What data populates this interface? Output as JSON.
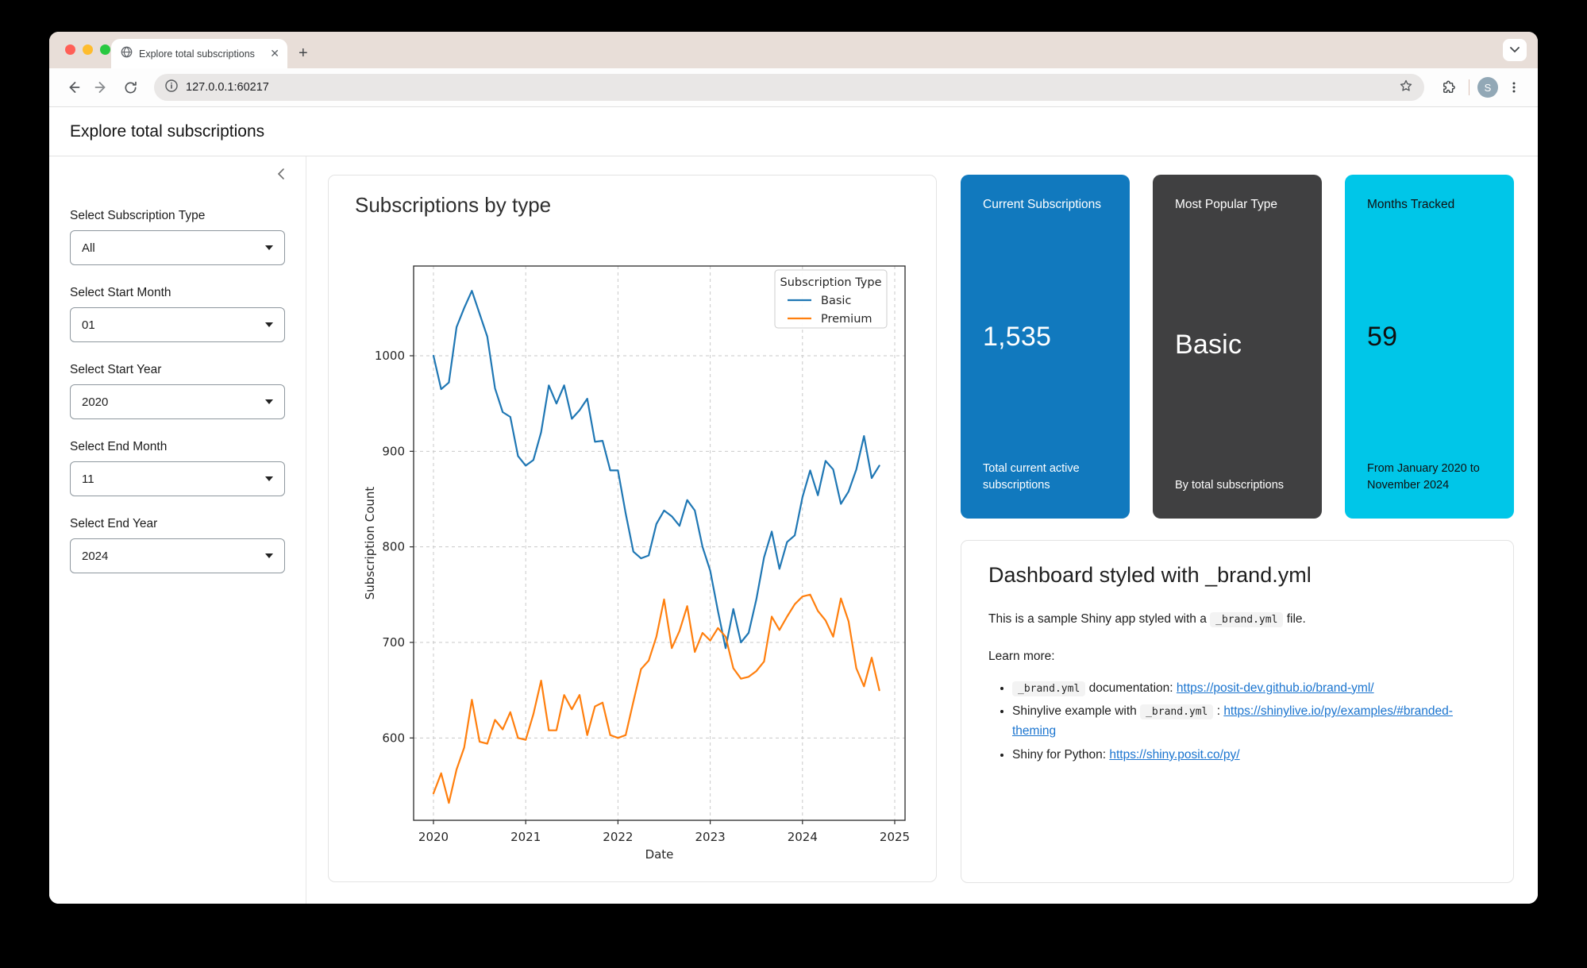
{
  "browser": {
    "tab_title": "Explore total subscriptions",
    "close_tab_glyph": "✕",
    "new_tab_glyph": "+",
    "url": "127.0.0.1:60217",
    "avatar_initial": "S"
  },
  "header": {
    "title": "Explore total subscriptions"
  },
  "sidebar": {
    "selects": [
      {
        "label": "Select Subscription Type",
        "value": "All"
      },
      {
        "label": "Select Start Month",
        "value": "01"
      },
      {
        "label": "Select Start Year",
        "value": "2020"
      },
      {
        "label": "Select End Month",
        "value": "11"
      },
      {
        "label": "Select End Year",
        "value": "2024"
      }
    ]
  },
  "chart_card": {
    "title": "Subscriptions by type"
  },
  "chart_data": {
    "type": "line",
    "title": "Subscriptions by type",
    "xlabel": "Date",
    "ylabel": "Subscription Count",
    "x_start_year": 2020,
    "points_per_year": 12,
    "x_tick_years": [
      2020,
      2021,
      2022,
      2023,
      2024,
      2025
    ],
    "y_ticks": [
      600,
      700,
      800,
      900,
      1000
    ],
    "xlim": [
      2019.78,
      2025.11
    ],
    "ylim": [
      513,
      1095
    ],
    "grid": "dashed",
    "legend": {
      "title": "Subscription Type",
      "position": "upper right"
    },
    "series": [
      {
        "name": "Basic",
        "color": "#1f77b4",
        "values": [
          1000,
          965,
          972,
          1030,
          1050,
          1068,
          1044,
          1020,
          966,
          941,
          936,
          895,
          885,
          891,
          920,
          969,
          950,
          969,
          934,
          943,
          955,
          910,
          911,
          880,
          880,
          835,
          795,
          788,
          791,
          824,
          838,
          832,
          822,
          849,
          838,
          800,
          775,
          733,
          694,
          735,
          700,
          710,
          745,
          789,
          816,
          777,
          805,
          812,
          852,
          880,
          854,
          890,
          881,
          845,
          858,
          881,
          916,
          872,
          885
        ]
      },
      {
        "name": "Premium",
        "color": "#ff7f0e",
        "values": [
          542,
          563,
          532,
          567,
          590,
          640,
          596,
          594,
          619,
          609,
          627,
          600,
          598,
          625,
          660,
          608,
          608,
          645,
          630,
          645,
          603,
          633,
          637,
          603,
          600,
          603,
          638,
          672,
          681,
          706,
          745,
          694,
          712,
          738,
          690,
          710,
          702,
          715,
          706,
          673,
          662,
          664,
          670,
          680,
          727,
          713,
          727,
          740,
          748,
          750,
          733,
          723,
          706,
          746,
          722,
          673,
          654,
          684,
          650
        ]
      }
    ]
  },
  "value_boxes": [
    {
      "title": "Current Subscriptions",
      "value": "1,535",
      "caption": "Total current active subscriptions",
      "bg": "#1179be",
      "fg": "#ffffff"
    },
    {
      "title": "Most Popular Type",
      "value": "Basic",
      "caption": "By total subscriptions",
      "bg": "#404041",
      "fg": "#ffffff"
    },
    {
      "title": "Months Tracked",
      "value": "59",
      "caption": "From January 2020 to November 2024",
      "bg": "#00c6e8",
      "fg": "#101010"
    }
  ],
  "info_card": {
    "title": "Dashboard styled with _brand.yml",
    "intro": [
      {
        "type": "text",
        "value": "This is a sample Shiny app styled with a "
      },
      {
        "type": "code",
        "value": "_brand.yml"
      },
      {
        "type": "text",
        "value": " file."
      }
    ],
    "learn_more_label": "Learn more:",
    "bullets": [
      [
        {
          "type": "code",
          "value": "_brand.yml"
        },
        {
          "type": "text",
          "value": " documentation: "
        },
        {
          "type": "link",
          "value": "https://posit-dev.github.io/brand-yml/"
        }
      ],
      [
        {
          "type": "text",
          "value": "Shinylive example with "
        },
        {
          "type": "code",
          "value": "_brand.yml"
        },
        {
          "type": "text",
          "value": " : "
        },
        {
          "type": "link",
          "value": "https://shinylive.io/py/examples/#branded-theming"
        }
      ],
      [
        {
          "type": "text",
          "value": "Shiny for Python: "
        },
        {
          "type": "link",
          "value": "https://shiny.posit.co/py/"
        }
      ]
    ]
  },
  "colors": {
    "traffic_red": "#ff5f57",
    "traffic_yellow": "#febc2e",
    "traffic_green": "#28c840",
    "chrome_bg": "#e8ded8",
    "link": "#1a74cf"
  }
}
